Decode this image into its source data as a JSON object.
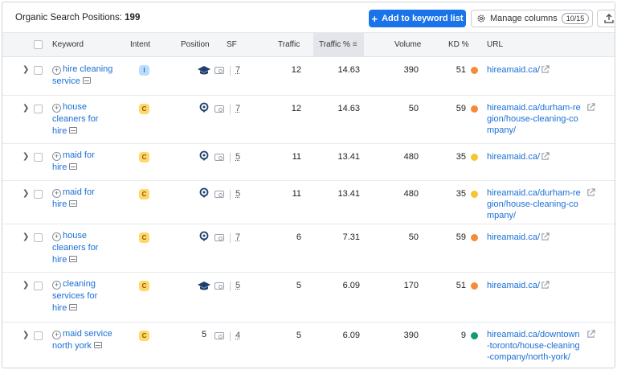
{
  "toolbar": {
    "title_label": "Organic Search Positions:",
    "count": "199",
    "add_button": "Add to keyword list",
    "manage_button": "Manage columns",
    "manage_count": "10/15"
  },
  "columns": {
    "keyword": "Keyword",
    "intent": "Intent",
    "position": "Position",
    "sf": "SF",
    "traffic": "Traffic",
    "traffic_pct": "Traffic %",
    "volume": "Volume",
    "kd": "KD %",
    "url": "URL"
  },
  "colors": {
    "accent": "#1a73e8",
    "link": "#1a6fd6",
    "kd_orange": "#f58b3a",
    "kd_yellow": "#f7c531",
    "kd_green": "#129b76",
    "intent_informational": "#b9dcff",
    "intent_commercial": "#ffd76a"
  },
  "rows": [
    {
      "keyword": "hire cleaning service",
      "intent": "I",
      "position_icon": "graduation-cap-icon",
      "sf": "7",
      "traffic": "12",
      "traffic_pct": "14.63",
      "volume": "390",
      "kd": "51",
      "kd_color": "#f58b3a",
      "url": "hireamaid.ca/"
    },
    {
      "keyword": "house cleaners for hire",
      "intent": "C",
      "position_icon": "location-pin-icon",
      "sf": "7",
      "traffic": "12",
      "traffic_pct": "14.63",
      "volume": "50",
      "kd": "59",
      "kd_color": "#f58b3a",
      "url": "hireamaid.ca/durham-region/house-cleaning-company/"
    },
    {
      "keyword": "maid for hire",
      "intent": "C",
      "position_icon": "location-pin-icon",
      "sf": "5",
      "traffic": "11",
      "traffic_pct": "13.41",
      "volume": "480",
      "kd": "35",
      "kd_color": "#f7c531",
      "url": "hireamaid.ca/"
    },
    {
      "keyword": "maid for hire",
      "intent": "C",
      "position_icon": "location-pin-icon",
      "sf": "5",
      "traffic": "11",
      "traffic_pct": "13.41",
      "volume": "480",
      "kd": "35",
      "kd_color": "#f7c531",
      "url": "hireamaid.ca/durham-region/house-cleaning-company/"
    },
    {
      "keyword": "house cleaners for hire",
      "intent": "C",
      "position_icon": "location-pin-icon",
      "sf": "7",
      "traffic": "6",
      "traffic_pct": "7.31",
      "volume": "50",
      "kd": "59",
      "kd_color": "#f58b3a",
      "url": "hireamaid.ca/"
    },
    {
      "keyword": "cleaning services for hire",
      "intent": "C",
      "position_icon": "graduation-cap-icon",
      "sf": "5",
      "traffic": "5",
      "traffic_pct": "6.09",
      "volume": "170",
      "kd": "51",
      "kd_color": "#f58b3a",
      "url": "hireamaid.ca/"
    },
    {
      "keyword": "maid service north york",
      "intent": "C",
      "position": "5",
      "sf": "4",
      "traffic": "5",
      "traffic_pct": "6.09",
      "volume": "390",
      "kd": "9",
      "kd_color": "#129b76",
      "url": "hireamaid.ca/downtown-toronto/house-cleaning-company/north-york/"
    }
  ]
}
